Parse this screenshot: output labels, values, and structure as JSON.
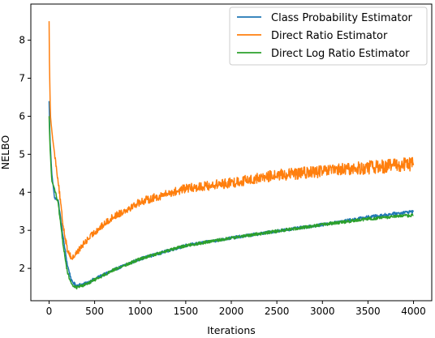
{
  "chart_data": {
    "type": "line",
    "title": "",
    "xlabel": "Iterations",
    "ylabel": "NELBO",
    "xlim": [
      -200,
      4200
    ],
    "ylim": [
      1.15,
      8.95
    ],
    "xticks": [
      0,
      500,
      1000,
      1500,
      2000,
      2500,
      3000,
      3500,
      4000
    ],
    "yticks": [
      2,
      3,
      4,
      5,
      6,
      7,
      8
    ],
    "legend_position": "top-right",
    "grid": false,
    "series": [
      {
        "name": "Class Probability Estimator",
        "color": "#1f77b4",
        "noise": 0.04,
        "x": [
          0,
          10,
          30,
          60,
          100,
          150,
          200,
          250,
          300,
          400,
          500,
          700,
          1000,
          1500,
          2000,
          2500,
          3000,
          3500,
          4000
        ],
        "y": [
          6.4,
          5.4,
          4.5,
          3.85,
          3.8,
          2.9,
          2.1,
          1.65,
          1.55,
          1.6,
          1.72,
          1.95,
          2.25,
          2.6,
          2.8,
          2.98,
          3.15,
          3.35,
          3.5
        ]
      },
      {
        "name": "Direct Ratio Estimator",
        "color": "#ff7f0e",
        "noise": 0.12,
        "x": [
          0,
          5,
          15,
          40,
          100,
          150,
          200,
          250,
          300,
          400,
          500,
          700,
          1000,
          1500,
          2000,
          2500,
          3000,
          3500,
          4000
        ],
        "y": [
          8.5,
          7.2,
          6.0,
          5.4,
          4.3,
          3.2,
          2.5,
          2.25,
          2.4,
          2.7,
          2.95,
          3.35,
          3.75,
          4.1,
          4.25,
          4.45,
          4.55,
          4.65,
          4.75
        ]
      },
      {
        "name": "Direct Log Ratio Estimator",
        "color": "#2ca02c",
        "noise": 0.04,
        "x": [
          0,
          10,
          30,
          60,
          100,
          150,
          200,
          250,
          300,
          400,
          500,
          700,
          1000,
          1500,
          2000,
          2500,
          3000,
          3500,
          4000
        ],
        "y": [
          6.0,
          5.2,
          4.3,
          4.1,
          3.7,
          2.7,
          1.9,
          1.55,
          1.5,
          1.58,
          1.7,
          1.95,
          2.25,
          2.6,
          2.8,
          2.98,
          3.15,
          3.3,
          3.4
        ]
      }
    ]
  }
}
